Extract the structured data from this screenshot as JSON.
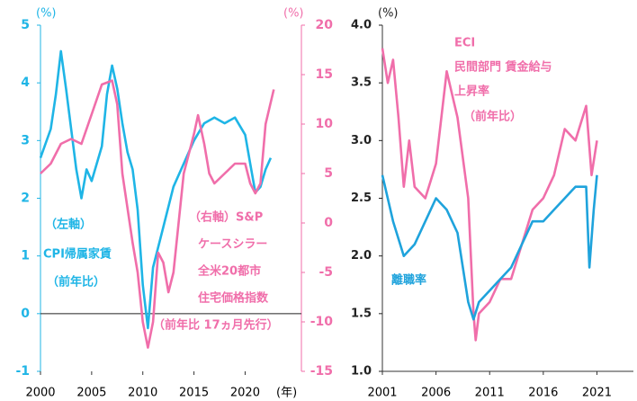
{
  "chart_data": [
    {
      "type": "line",
      "y_unit": "(%)",
      "y2_unit": "(%)",
      "x_unit": "(年)",
      "xlim": [
        2000,
        2025.5
      ],
      "xticks": [
        2000,
        2005,
        2010,
        2015,
        2020
      ],
      "ylim": [
        -1,
        5
      ],
      "yticks": [
        -1,
        0,
        1,
        2,
        3,
        4,
        5
      ],
      "y2lim": [
        -15,
        20
      ],
      "y2ticks": [
        -15,
        -10,
        -5,
        0,
        5,
        10,
        15,
        20
      ],
      "zero_line": true,
      "series": [
        {
          "color": "#1fb5e6",
          "annotation": [
            "（左軸）",
            "CPI帰属家賃",
            "（前年比）"
          ],
          "x": [
            2000,
            2001,
            2001.5,
            2002,
            2002.5,
            2003,
            2003.5,
            2004,
            2004.5,
            2005,
            2006,
            2006.5,
            2007,
            2007.5,
            2008,
            2008.5,
            2009,
            2009.5,
            2010,
            2010.5,
            2011,
            2012,
            2013,
            2014,
            2015,
            2016,
            2017,
            2018,
            2019,
            2020,
            2020.5,
            2021,
            2021.5,
            2022,
            2022.5
          ],
          "values": [
            2.7,
            3.2,
            3.8,
            4.55,
            3.9,
            3.2,
            2.5,
            2.0,
            2.5,
            2.3,
            2.9,
            3.8,
            4.3,
            3.9,
            3.3,
            2.8,
            2.5,
            1.8,
            0.5,
            -0.25,
            0.8,
            1.5,
            2.2,
            2.6,
            3.0,
            3.3,
            3.4,
            3.3,
            3.4,
            3.1,
            2.6,
            2.1,
            2.2,
            2.5,
            2.7
          ]
        },
        {
          "color": "#f06eaa",
          "axis": "y2",
          "annotation": [
            "（右軸）S&P",
            "ケースシラー",
            "全米20都市",
            "住宅価格指数",
            "（前年比 17ヵ月先行）"
          ],
          "x": [
            2000,
            2001,
            2002,
            2003,
            2004,
            2005,
            2006,
            2007,
            2007.5,
            2008,
            2009,
            2009.5,
            2010,
            2010.5,
            2011,
            2011.5,
            2012,
            2012.5,
            2013,
            2013.5,
            2014,
            2015,
            2015.4,
            2016,
            2016.5,
            2017,
            2018,
            2019,
            2020,
            2020.5,
            2021,
            2021.5,
            2022,
            2022.8
          ],
          "values": [
            5,
            6,
            8,
            8.5,
            8,
            11,
            14,
            14.4,
            12,
            5,
            -2,
            -5,
            -10,
            -12.6,
            -10,
            -3,
            -4,
            -7,
            -5,
            0,
            5,
            9,
            10.9,
            8,
            5,
            4,
            5,
            6,
            6,
            4,
            3,
            4,
            10,
            13.5
          ]
        }
      ]
    },
    {
      "type": "line",
      "y_unit": "(%)",
      "xlim": [
        2001,
        2024.4
      ],
      "xticks": [
        2001,
        2006,
        2011,
        2016,
        2021
      ],
      "ylim": [
        1,
        4
      ],
      "yticks": [
        {
          "value": 1,
          "label": "1.0"
        },
        1.5,
        {
          "value": 2,
          "label": "2.0"
        },
        2.5,
        {
          "value": 3,
          "label": "3.0"
        },
        3.5,
        {
          "value": 4,
          "label": "4.0"
        }
      ],
      "series": [
        {
          "color": "#f06eaa",
          "annotation": [
            "ECI",
            "民間部門 賃金給与",
            "上昇率",
            "（前年比）"
          ],
          "x": [
            2001,
            2001.5,
            2002,
            2002.5,
            2003,
            2003.5,
            2004,
            2005,
            2006,
            2007,
            2008,
            2009,
            2009.5,
            2009.7,
            2010,
            2011,
            2012,
            2013,
            2014,
            2015,
            2016,
            2017,
            2018,
            2019,
            2020,
            2020.5,
            2021
          ],
          "values": [
            3.8,
            3.5,
            3.7,
            3.2,
            2.6,
            3.0,
            2.6,
            2.5,
            2.8,
            3.6,
            3.2,
            2.5,
            1.5,
            1.27,
            1.5,
            1.6,
            1.8,
            1.8,
            2.1,
            2.4,
            2.5,
            2.7,
            3.1,
            3.0,
            3.3,
            2.7,
            3.0
          ]
        },
        {
          "color": "#1fa3dc",
          "annotation": [
            "離職率"
          ],
          "x": [
            2001,
            2002,
            2003,
            2004,
            2005,
            2006,
            2007,
            2008,
            2009,
            2009.5,
            2010,
            2011,
            2012,
            2013,
            2014,
            2015,
            2016,
            2017,
            2018,
            2019,
            2020,
            2020.3,
            2020.7,
            2021
          ],
          "values": [
            2.7,
            2.3,
            2.0,
            2.1,
            2.3,
            2.5,
            2.4,
            2.2,
            1.6,
            1.45,
            1.6,
            1.7,
            1.8,
            1.9,
            2.1,
            2.3,
            2.3,
            2.4,
            2.5,
            2.6,
            2.6,
            1.9,
            2.4,
            2.7
          ]
        }
      ]
    }
  ]
}
